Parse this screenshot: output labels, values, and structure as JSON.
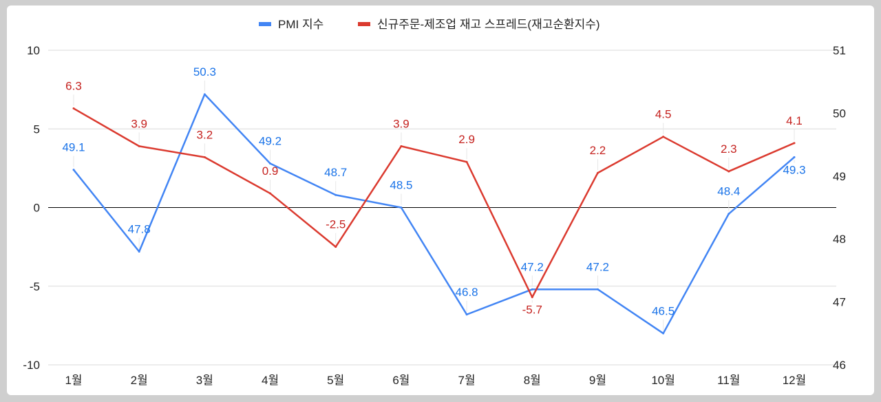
{
  "chart_data": {
    "type": "line",
    "title": "",
    "categories": [
      "1월",
      "2월",
      "3월",
      "4월",
      "5월",
      "6월",
      "7월",
      "8월",
      "9월",
      "10월",
      "11월",
      "12월"
    ],
    "series": [
      {
        "name": "PMI 지수",
        "axis": "right",
        "color": "#4285f4",
        "values": [
          49.1,
          47.8,
          50.3,
          49.2,
          48.7,
          48.5,
          46.8,
          47.2,
          47.2,
          46.5,
          48.4,
          49.3
        ]
      },
      {
        "name": "신규주문-제조업 재고 스프레드(재고순환지수)",
        "axis": "left",
        "color": "#db3a2f",
        "values": [
          6.3,
          3.9,
          3.2,
          0.9,
          -2.5,
          3.9,
          2.9,
          -5.7,
          2.2,
          4.5,
          2.3,
          4.1
        ]
      }
    ],
    "y_left": {
      "range": [
        -10,
        10
      ],
      "ticks": [
        "10",
        "5",
        "0",
        "-5",
        "-10"
      ],
      "tick_values": [
        10,
        5,
        0,
        -5,
        -10
      ]
    },
    "y_right": {
      "range": [
        46,
        51
      ],
      "ticks": [
        "51",
        "50",
        "49",
        "48",
        "47",
        "46"
      ],
      "tick_values": [
        51,
        50,
        49,
        48,
        47,
        46
      ]
    },
    "grid": true,
    "legend": "top",
    "data_labels": true
  }
}
